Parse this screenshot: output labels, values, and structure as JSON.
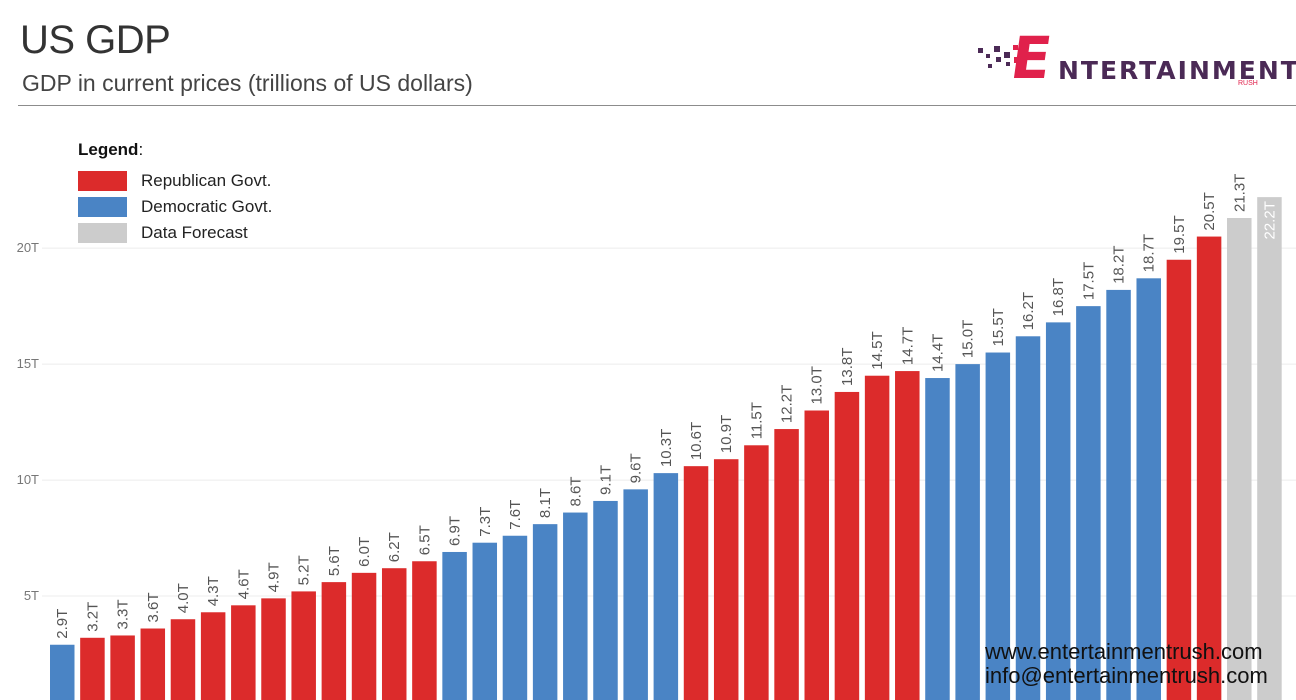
{
  "header": {
    "title": "US GDP",
    "subtitle": "GDP in current prices (trillions of US dollars)"
  },
  "logo": {
    "letter": "E",
    "name": "NTERTAINMENT",
    "tagline": "RUSH",
    "colors": {
      "primary": "#e0214b",
      "secondary": "#4b2a56"
    }
  },
  "legend": {
    "title": "Legend",
    "items": [
      {
        "label": "Republican Govt.",
        "color": "#dc2b2b"
      },
      {
        "label": "Democratic Govt.",
        "color": "#4a84c5"
      },
      {
        "label": "Data Forecast",
        "color": "#cccccc"
      }
    ]
  },
  "watermark": {
    "website": "www.entertainmentrush.com",
    "email": "info@entertainmentrush.com"
  },
  "chart_data": {
    "type": "bar",
    "ylim": [
      0,
      30.7
    ],
    "yticks": [
      {
        "value": 5,
        "label": "5T"
      },
      {
        "value": 10,
        "label": "10T"
      },
      {
        "value": 15,
        "label": "15T"
      },
      {
        "value": 20,
        "label": "20T"
      }
    ],
    "grid": true,
    "legend_position": "top-left",
    "colors": {
      "republican": "#dc2b2b",
      "democratic": "#4a84c5",
      "forecast": "#cccccc"
    },
    "bars": [
      {
        "value": 2.9,
        "label": "2.9T",
        "party": "democratic"
      },
      {
        "value": 3.2,
        "label": "3.2T",
        "party": "republican"
      },
      {
        "value": 3.3,
        "label": "3.3T",
        "party": "republican"
      },
      {
        "value": 3.6,
        "label": "3.6T",
        "party": "republican"
      },
      {
        "value": 4.0,
        "label": "4.0T",
        "party": "republican"
      },
      {
        "value": 4.3,
        "label": "4.3T",
        "party": "republican"
      },
      {
        "value": 4.6,
        "label": "4.6T",
        "party": "republican"
      },
      {
        "value": 4.9,
        "label": "4.9T",
        "party": "republican"
      },
      {
        "value": 5.2,
        "label": "5.2T",
        "party": "republican"
      },
      {
        "value": 5.6,
        "label": "5.6T",
        "party": "republican"
      },
      {
        "value": 6.0,
        "label": "6.0T",
        "party": "republican"
      },
      {
        "value": 6.2,
        "label": "6.2T",
        "party": "republican"
      },
      {
        "value": 6.5,
        "label": "6.5T",
        "party": "republican"
      },
      {
        "value": 6.9,
        "label": "6.9T",
        "party": "democratic"
      },
      {
        "value": 7.3,
        "label": "7.3T",
        "party": "democratic"
      },
      {
        "value": 7.6,
        "label": "7.6T",
        "party": "democratic"
      },
      {
        "value": 8.1,
        "label": "8.1T",
        "party": "democratic"
      },
      {
        "value": 8.6,
        "label": "8.6T",
        "party": "democratic"
      },
      {
        "value": 9.1,
        "label": "9.1T",
        "party": "democratic"
      },
      {
        "value": 9.6,
        "label": "9.6T",
        "party": "democratic"
      },
      {
        "value": 10.3,
        "label": "10.3T",
        "party": "democratic"
      },
      {
        "value": 10.6,
        "label": "10.6T",
        "party": "republican"
      },
      {
        "value": 10.9,
        "label": "10.9T",
        "party": "republican"
      },
      {
        "value": 11.5,
        "label": "11.5T",
        "party": "republican"
      },
      {
        "value": 12.2,
        "label": "12.2T",
        "party": "republican"
      },
      {
        "value": 13.0,
        "label": "13.0T",
        "party": "republican"
      },
      {
        "value": 13.8,
        "label": "13.8T",
        "party": "republican"
      },
      {
        "value": 14.5,
        "label": "14.5T",
        "party": "republican"
      },
      {
        "value": 14.7,
        "label": "14.7T",
        "party": "republican"
      },
      {
        "value": 14.4,
        "label": "14.4T",
        "party": "democratic"
      },
      {
        "value": 15.0,
        "label": "15.0T",
        "party": "democratic"
      },
      {
        "value": 15.5,
        "label": "15.5T",
        "party": "democratic"
      },
      {
        "value": 16.2,
        "label": "16.2T",
        "party": "democratic"
      },
      {
        "value": 16.8,
        "label": "16.8T",
        "party": "democratic"
      },
      {
        "value": 17.5,
        "label": "17.5T",
        "party": "democratic"
      },
      {
        "value": 18.2,
        "label": "18.2T",
        "party": "democratic"
      },
      {
        "value": 18.7,
        "label": "18.7T",
        "party": "democratic"
      },
      {
        "value": 19.5,
        "label": "19.5T",
        "party": "republican"
      },
      {
        "value": 20.5,
        "label": "20.5T",
        "party": "republican"
      },
      {
        "value": 21.3,
        "label": "21.3T",
        "party": "forecast"
      },
      {
        "value": 22.2,
        "label": "22.2T",
        "party": "forecast"
      }
    ]
  }
}
